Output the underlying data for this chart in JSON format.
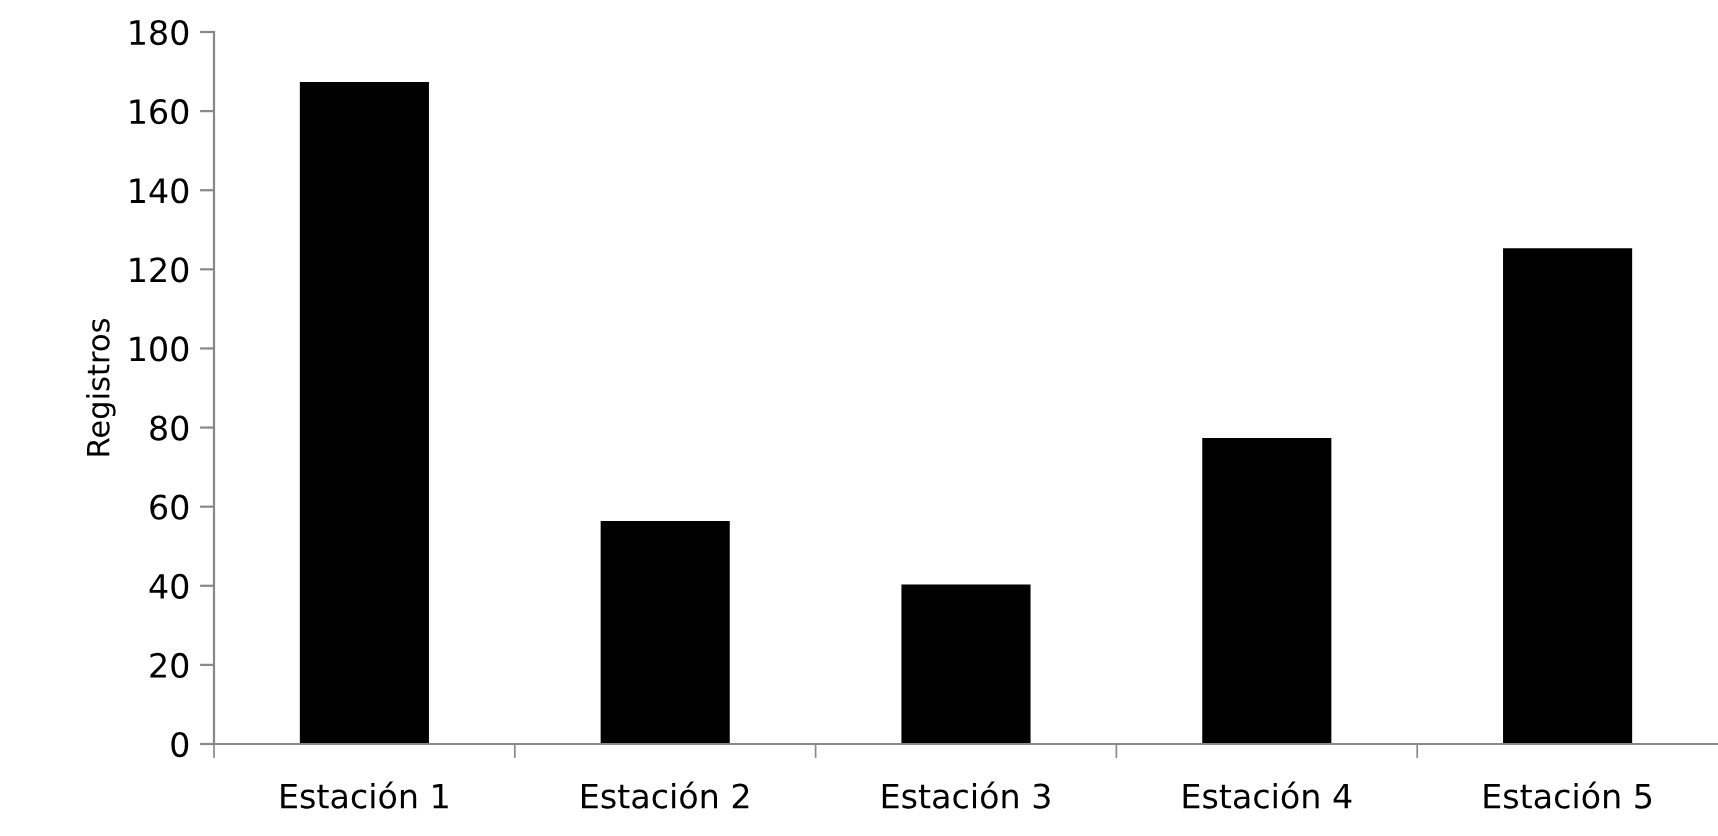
{
  "chart_data": {
    "type": "bar",
    "ylabel": "Registros",
    "categories": [
      "Estación 1",
      "Estación 2",
      "Estación 3",
      "Estación 4",
      "Estación 5"
    ],
    "values": [
      167,
      56,
      40,
      77,
      125
    ],
    "color": "#000000",
    "ylim": [
      0,
      180
    ],
    "yticks": [
      0,
      20,
      40,
      60,
      80,
      100,
      120,
      140,
      160,
      180
    ],
    "grid": false,
    "legend": false
  }
}
